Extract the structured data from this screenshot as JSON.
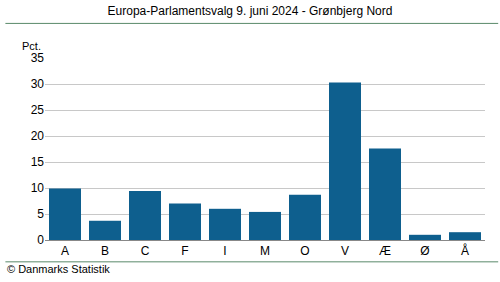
{
  "chart_data": {
    "type": "bar",
    "title": "Europa-Parlamentsvalg 9. juni 2024 - Grønbjerg Nord",
    "ylabel": "Pct.",
    "annotations": [
      "© Danmarks Statistik"
    ],
    "categories": [
      "A",
      "B",
      "C",
      "F",
      "I",
      "M",
      "O",
      "V",
      "Æ",
      "Ø",
      "Å"
    ],
    "values": [
      9.9,
      3.7,
      9.4,
      7.0,
      6.0,
      5.4,
      8.7,
      30.3,
      17.6,
      1.0,
      1.5
    ],
    "color": "#0e5f8e",
    "ylim": [
      0,
      35
    ],
    "yticks": [
      0,
      5,
      10,
      15,
      20,
      25,
      30,
      35
    ],
    "grid": true
  }
}
